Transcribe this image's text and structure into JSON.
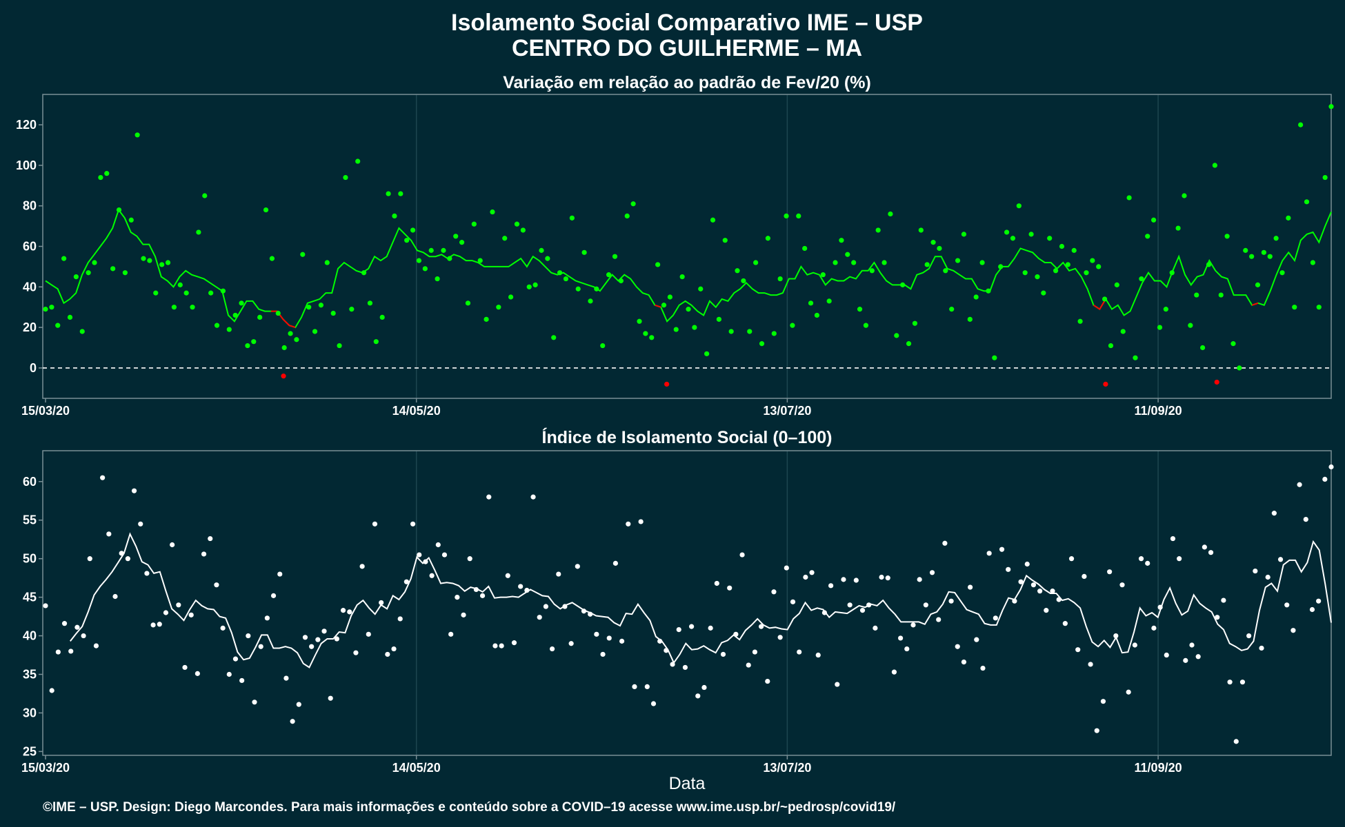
{
  "title_line1": "Isolamento Social Comparativo IME – USP",
  "title_line2": "CENTRO DO GUILHERME – MA",
  "xlabel": "Data",
  "caption": "©IME – USP. Design: Diego Marcondes. Para mais informações e conteúdo sobre a COVID–19 acesse www.ime.usp.br/~pedrosp/covid19/",
  "colors": {
    "background": "#022833",
    "panel_border": "#7a8f96",
    "gridline": "#1d4650",
    "positive": "#00ff00",
    "negative": "#ff0000",
    "index": "#ffffff"
  },
  "chart_data": [
    {
      "type": "scatter",
      "title": "Variação em relação ao padrão de Fev/20 (%)",
      "xlabel": "Data",
      "ylabel": "",
      "x_start": "15/03/20",
      "x_range": [
        "15/03/20",
        "10/10/20"
      ],
      "x_ticks": [
        "15/03/20",
        "14/05/20",
        "13/07/20",
        "11/09/20"
      ],
      "y_ticks": [
        0,
        20,
        40,
        60,
        80,
        100,
        120
      ],
      "ylim": [
        -15,
        135
      ],
      "reference_line": 0,
      "grid": true,
      "series": [
        {
          "points_y": [
            29,
            30,
            21,
            54,
            25,
            45,
            18,
            47,
            52,
            94,
            96,
            49,
            78,
            47,
            73,
            115,
            54,
            53,
            37,
            51,
            52,
            30,
            41,
            37,
            30,
            67,
            85,
            37,
            21,
            38,
            19,
            26,
            32,
            11,
            13,
            25,
            78,
            54,
            27,
            10,
            17,
            14,
            56,
            30,
            18,
            31,
            52,
            27,
            11,
            94,
            29,
            102,
            47,
            32,
            13,
            25,
            86,
            75,
            86,
            63,
            68,
            53,
            49,
            58,
            44,
            58,
            54,
            65,
            62,
            32,
            71,
            53,
            24,
            77,
            30,
            64,
            35,
            71,
            68,
            40,
            41,
            58,
            54,
            15,
            47,
            44,
            74,
            39,
            57,
            33,
            39,
            11,
            46,
            55,
            43,
            75,
            81,
            23,
            17,
            15,
            51,
            31,
            35,
            19,
            45,
            29,
            20,
            39,
            7,
            73,
            24,
            63,
            18,
            48,
            43,
            18,
            52,
            12,
            64,
            17,
            44,
            75,
            21,
            75,
            59,
            32,
            26,
            46,
            33,
            52,
            63,
            56,
            52,
            29,
            21,
            48,
            68,
            52,
            76,
            16,
            41,
            12,
            22,
            68,
            51,
            62,
            59,
            48,
            29,
            53,
            66,
            24,
            35,
            52,
            38,
            5,
            50,
            67,
            64,
            80,
            47,
            66,
            45,
            37,
            64,
            48,
            60,
            51,
            58,
            23,
            47,
            53,
            50,
            34,
            11,
            41,
            18,
            84,
            5,
            44,
            65,
            73,
            20,
            29,
            47,
            69,
            85,
            21,
            36,
            10,
            51,
            100,
            36,
            65,
            12,
            0,
            58,
            55,
            41,
            57,
            55,
            64,
            47,
            74,
            30,
            120,
            82,
            52,
            30,
            94,
            129
          ],
          "negative_points": [
            -4,
            -8,
            -8,
            -7
          ]
        },
        {
          "type": "line",
          "values": [
            43,
            41,
            39,
            32,
            34,
            37,
            46,
            52,
            56,
            60,
            64,
            69,
            78,
            74,
            67,
            65,
            61,
            61,
            55,
            45,
            43,
            40,
            45,
            48,
            46,
            45,
            44,
            42,
            40,
            38,
            26,
            23,
            28,
            33,
            33,
            29,
            28,
            28,
            28,
            24,
            21,
            20,
            25,
            32,
            33,
            34,
            37,
            37,
            49,
            52,
            50,
            48,
            47,
            49,
            55,
            53,
            55,
            62,
            69,
            66,
            63,
            58,
            57,
            55,
            55,
            56,
            54,
            56,
            55,
            53,
            53,
            52,
            50,
            50,
            50,
            50,
            50,
            52,
            54,
            50,
            55,
            53,
            50,
            47,
            46,
            47,
            45,
            43,
            42,
            41,
            40,
            38,
            42,
            46,
            43,
            46,
            44,
            40,
            37,
            36,
            31,
            30,
            23,
            26,
            31,
            33,
            31,
            28,
            26,
            33,
            30,
            34,
            33,
            37,
            39,
            42,
            39,
            37,
            37,
            36,
            36,
            37,
            44,
            44,
            50,
            46,
            47,
            46,
            41,
            44,
            43,
            43,
            45,
            44,
            48,
            48,
            52,
            47,
            43,
            41,
            41,
            41,
            39,
            46,
            47,
            49,
            55,
            55,
            49,
            48,
            46,
            44,
            44,
            39,
            38,
            38,
            46,
            50,
            50,
            54,
            59,
            58,
            57,
            54,
            52,
            52,
            49,
            52,
            48,
            49,
            45,
            39,
            31,
            29,
            34,
            29,
            31,
            26,
            28,
            35,
            42,
            47,
            43,
            43,
            40,
            48,
            55,
            46,
            41,
            45,
            46,
            53,
            48,
            45,
            44,
            36,
            36,
            36,
            31,
            32,
            31,
            38,
            46,
            53,
            57,
            53,
            63,
            66,
            67,
            62,
            70,
            77
          ],
          "neg_segment_indices": [
            [
              37,
              41
            ],
            [
              100,
              101
            ],
            [
              172,
              174
            ],
            [
              198,
              199
            ]
          ]
        }
      ]
    },
    {
      "type": "scatter",
      "title": "Índice de Isolamento Social (0–100)",
      "xlabel": "Data",
      "ylabel": "",
      "x_ticks": [
        "15/03/20",
        "14/05/20",
        "13/07/20",
        "11/09/20"
      ],
      "y_ticks": [
        25,
        30,
        35,
        40,
        45,
        50,
        55,
        60
      ],
      "ylim": [
        24.5,
        64
      ],
      "grid": true,
      "series": [
        {
          "points_y": [
            43.9,
            32.9,
            37.9,
            41.6,
            38.0,
            41.1,
            40.0,
            50.0,
            38.7,
            60.5,
            53.2,
            45.1,
            50.7,
            50.0,
            58.8,
            54.5,
            48.1,
            41.4,
            41.5,
            43.0,
            51.8,
            44.0,
            35.9,
            42.7,
            35.1,
            50.6,
            52.6,
            46.6,
            41.0,
            35.0,
            37.0,
            34.2,
            40.0,
            31.4,
            38.6,
            42.3,
            45.2,
            48.0,
            34.5,
            28.9,
            31.1,
            39.8,
            38.6,
            39.5,
            40.6,
            31.9,
            39.6,
            43.3,
            43.1,
            37.8,
            49.0,
            40.2,
            54.5,
            44.3,
            37.6,
            38.3,
            42.2,
            47.0,
            54.5,
            50.5,
            49.6,
            47.8,
            51.8,
            50.5,
            40.2,
            45.0,
            42.7,
            50.0,
            46.0,
            45.2,
            58.0,
            38.7,
            38.7,
            47.8,
            39.1,
            46.4,
            45.9,
            58.0,
            42.4,
            43.8,
            38.3,
            48.0,
            43.8,
            39.0,
            49.0,
            43.2,
            42.8,
            40.2,
            37.6,
            39.7,
            49.4,
            39.3,
            54.5,
            33.4,
            54.8,
            33.4,
            31.2,
            39.3,
            38.1,
            36.3,
            40.8,
            35.9,
            41.2,
            32.2,
            33.3,
            41.0,
            46.8,
            37.6,
            46.2,
            40.2,
            50.5,
            36.2,
            37.9,
            41.2,
            34.1,
            45.7,
            39.8,
            48.8,
            44.4,
            37.9,
            47.6,
            48.2,
            37.5,
            43.0,
            46.5,
            33.7,
            47.3,
            44.0,
            47.2,
            43.3,
            44.0,
            41.0,
            47.6,
            47.5,
            35.3,
            39.7,
            38.3,
            41.4,
            47.3,
            44.0,
            48.2,
            42.1,
            52.0,
            44.5,
            38.6,
            36.6,
            46.3,
            39.5,
            35.8,
            50.7,
            42.3,
            51.2,
            48.6,
            44.5,
            47.0,
            49.3,
            46.6,
            45.8,
            43.3,
            45.8,
            44.7,
            41.6,
            50.0,
            38.2,
            47.7,
            36.3,
            27.7,
            31.5,
            48.3,
            40.0,
            46.6,
            32.7,
            38.8,
            50.0,
            49.4,
            41.0,
            43.7,
            37.5,
            52.6,
            50.0,
            36.8,
            38.8,
            37.3,
            51.5,
            50.8,
            42.4,
            44.6,
            34.0,
            26.3,
            34.0,
            40.0,
            48.4,
            38.4,
            47.6,
            55.9,
            49.9,
            44.0,
            40.7,
            59.6,
            55.1,
            43.4,
            44.5,
            60.3,
            61.9
          ],
          "negative_points": []
        },
        {
          "type": "line",
          "values": [
            39.3,
            40.3,
            41.2,
            43.1,
            45.3,
            46.4,
            47.3,
            48.3,
            49.5,
            50.7,
            53.2,
            51.6,
            49.6,
            49.2,
            48.1,
            48.3,
            45.8,
            43.5,
            42.8,
            42.0,
            43.4,
            44.6,
            43.9,
            43.5,
            43.4,
            42.5,
            42.3,
            40.4,
            37.9,
            36.9,
            37.1,
            38.5,
            40.1,
            40.1,
            38.4,
            38.4,
            38.6,
            38.4,
            37.8,
            36.4,
            35.9,
            37.5,
            39.0,
            39.6,
            39.6,
            40.5,
            40.4,
            42.6,
            44.0,
            44.6,
            43.6,
            42.8,
            44.0,
            43.5,
            45.2,
            44.7,
            45.7,
            47.4,
            50.2,
            49.4,
            50.1,
            48.5,
            46.8,
            46.9,
            46.8,
            46.5,
            45.8,
            46.3,
            46.1,
            45.7,
            46.4,
            44.9,
            45.0,
            45.0,
            45.1,
            45.0,
            45.5,
            46.0,
            45.6,
            45.2,
            45.1,
            44.1,
            43.5,
            44.0,
            44.3,
            43.8,
            43.3,
            43.0,
            42.6,
            42.5,
            42.4,
            41.7,
            41.3,
            42.9,
            42.8,
            44.1,
            43.0,
            42.0,
            39.9,
            39.3,
            38.2,
            36.5,
            37.6,
            39.0,
            38.2,
            38.3,
            38.7,
            38.2,
            37.8,
            39.1,
            39.4,
            40.1,
            39.5,
            40.7,
            41.4,
            42.2,
            41.4,
            41.0,
            41.1,
            40.9,
            40.8,
            42.2,
            42.9,
            44.3,
            43.3,
            43.6,
            43.4,
            42.4,
            43.1,
            43.0,
            42.9,
            43.4,
            43.9,
            43.7,
            44.1,
            43.9,
            44.6,
            43.6,
            42.8,
            41.8,
            41.8,
            41.8,
            41.8,
            41.5,
            42.8,
            43.1,
            44.1,
            45.7,
            45.6,
            44.5,
            43.4,
            43.1,
            42.8,
            41.6,
            41.4,
            41.4,
            43.3,
            44.9,
            44.7,
            46.0,
            47.8,
            47.2,
            46.7,
            46.0,
            45.5,
            45.5,
            44.6,
            44.8,
            44.3,
            43.6,
            41.2,
            39.2,
            38.6,
            39.4,
            38.5,
            39.8,
            37.8,
            37.9,
            40.5,
            43.6,
            42.6,
            43.0,
            42.4,
            44.7,
            46.2,
            44.2,
            42.7,
            43.2,
            45.3,
            44.2,
            43.6,
            43.1,
            41.5,
            40.8,
            39.0,
            38.6,
            38.1,
            38.3,
            39.3,
            43.3,
            46.3,
            46.8,
            45.8,
            49.2,
            49.8,
            49.8,
            48.3,
            49.5,
            52.2,
            51.1,
            46.7,
            41.7
          ]
        }
      ]
    }
  ]
}
